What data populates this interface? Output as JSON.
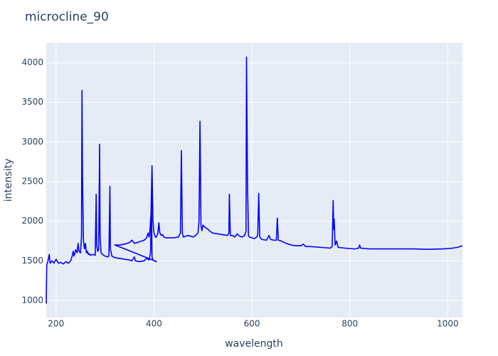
{
  "chart_data": {
    "type": "line",
    "title": "microcline_90",
    "x_label": "wavelength",
    "y_label": "intensity",
    "color": "#0000ff",
    "x": [
      180,
      181,
      183,
      186,
      188,
      192,
      196,
      200,
      205,
      210,
      215,
      220,
      225,
      230,
      233,
      235,
      237,
      240,
      243,
      245,
      247,
      250,
      252,
      253,
      254,
      256,
      258,
      260,
      262,
      264,
      266,
      268,
      270,
      275,
      280,
      282,
      283,
      285,
      287,
      289,
      290,
      292,
      295,
      300,
      305,
      308,
      310,
      311,
      314,
      320,
      330,
      340,
      350,
      355,
      360,
      362,
      370,
      380,
      385,
      390,
      393,
      395,
      396,
      398,
      400,
      405,
      320,
      330,
      340,
      350,
      355,
      360,
      370,
      380,
      385,
      388,
      390,
      392,
      394,
      396,
      398,
      400,
      403,
      405,
      408,
      410,
      412,
      415,
      418,
      420,
      425,
      430,
      440,
      450,
      454,
      456,
      458,
      460,
      470,
      480,
      485,
      490,
      492,
      494,
      496,
      498,
      500,
      505,
      510,
      515,
      520,
      530,
      540,
      550,
      553,
      554,
      556,
      560,
      565,
      570,
      575,
      580,
      585,
      588,
      589,
      591,
      593,
      595,
      600,
      605,
      610,
      612,
      614,
      616,
      620,
      630,
      635,
      638,
      645,
      650,
      652,
      654,
      660,
      670,
      680,
      690,
      700,
      705,
      710,
      720,
      740,
      760,
      764,
      766,
      767,
      768,
      770,
      773,
      776,
      790,
      810,
      818,
      820,
      822,
      840,
      870,
      900,
      930,
      960,
      990,
      1010,
      1020,
      1030
    ],
    "values": [
      960,
      1450,
      1480,
      1580,
      1470,
      1500,
      1470,
      1520,
      1470,
      1480,
      1460,
      1490,
      1470,
      1500,
      1560,
      1620,
      1560,
      1640,
      1600,
      1720,
      1620,
      1600,
      1800,
      3650,
      2600,
      1750,
      1650,
      1720,
      1600,
      1620,
      1580,
      1590,
      1570,
      1580,
      1570,
      2340,
      1700,
      1620,
      1640,
      2970,
      1800,
      1600,
      1580,
      1560,
      1550,
      1560,
      2440,
      1650,
      1560,
      1540,
      1530,
      1520,
      1510,
      1500,
      1550,
      1500,
      1490,
      1500,
      1530,
      1510,
      1600,
      2300,
      1550,
      1510,
      1500,
      1490,
      1700,
      1700,
      1710,
      1730,
      1760,
      1720,
      1740,
      1760,
      1790,
      1850,
      1800,
      1900,
      2100,
      2700,
      2000,
      1850,
      1800,
      1800,
      1850,
      1980,
      1850,
      1820,
      1830,
      1800,
      1790,
      1790,
      1790,
      1800,
      1850,
      2890,
      1850,
      1800,
      1820,
      1800,
      1820,
      1850,
      2000,
      3260,
      1950,
      1880,
      1950,
      1920,
      1900,
      1870,
      1850,
      1840,
      1830,
      1820,
      1850,
      2340,
      1820,
      1820,
      1800,
      1840,
      1810,
      1800,
      1820,
      1870,
      4070,
      2500,
      1820,
      1800,
      1790,
      1780,
      1800,
      1830,
      2350,
      1800,
      1770,
      1760,
      1820,
      1770,
      1760,
      1760,
      2040,
      1760,
      1750,
      1720,
      1700,
      1690,
      1690,
      1710,
      1680,
      1680,
      1670,
      1660,
      1680,
      2260,
      1900,
      2030,
      1700,
      1750,
      1670,
      1660,
      1650,
      1660,
      1700,
      1660,
      1650,
      1650,
      1650,
      1650,
      1645,
      1650,
      1660,
      1670,
      1690
    ],
    "xlim": [
      180,
      1030
    ],
    "ylim": [
      784,
      4252
    ],
    "xticks": [
      200,
      400,
      600,
      800,
      1000
    ],
    "yticks": [
      1000,
      1500,
      2000,
      2500,
      3000,
      3500,
      4000
    ],
    "grid": true
  }
}
